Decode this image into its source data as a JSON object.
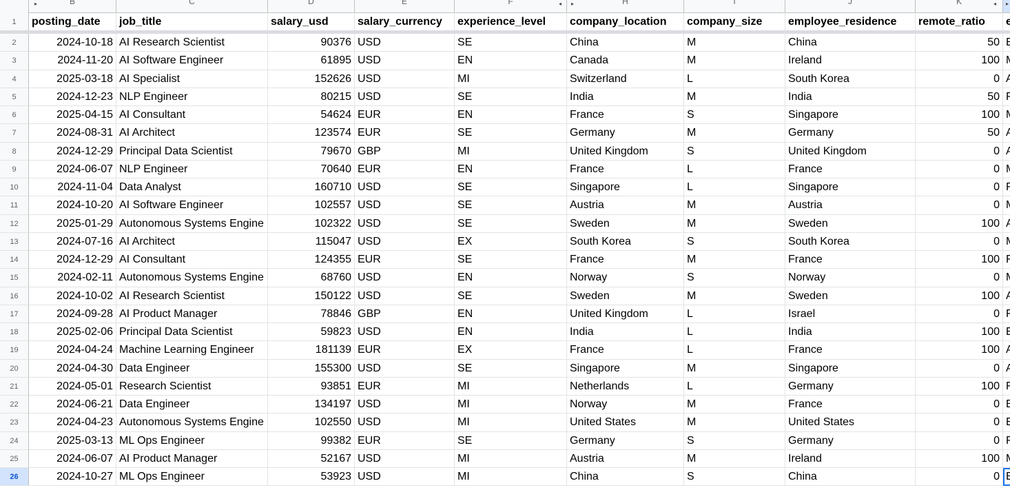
{
  "columns": [
    {
      "letter": "B",
      "header": "posting_date",
      "type": "num"
    },
    {
      "letter": "C",
      "header": "job_title",
      "type": "text"
    },
    {
      "letter": "D",
      "header": "salary_usd",
      "type": "num"
    },
    {
      "letter": "E",
      "header": "salary_currency",
      "type": "text"
    },
    {
      "letter": "F",
      "header": "experience_level",
      "type": "text"
    },
    {
      "letter": "H",
      "header": "company_location",
      "type": "text"
    },
    {
      "letter": "I",
      "header": "company_size",
      "type": "text"
    },
    {
      "letter": "J",
      "header": "employee_residence",
      "type": "text"
    },
    {
      "letter": "K",
      "header": "remote_ratio",
      "type": "num"
    },
    {
      "letter": "",
      "header": "e",
      "type": "text"
    }
  ],
  "header_row_number": "1",
  "selected_row": "26",
  "rows": [
    {
      "n": "2",
      "cells": [
        "2024-10-18",
        "AI Research Scientist",
        "90376",
        "USD",
        "SE",
        "China",
        "M",
        "China",
        "50",
        "E"
      ]
    },
    {
      "n": "3",
      "cells": [
        "2024-11-20",
        "AI Software Engineer",
        "61895",
        "USD",
        "EN",
        "Canada",
        "M",
        "Ireland",
        "100",
        "M"
      ]
    },
    {
      "n": "4",
      "cells": [
        "2025-03-18",
        "AI Specialist",
        "152626",
        "USD",
        "MI",
        "Switzerland",
        "L",
        "South Korea",
        "0",
        "A"
      ]
    },
    {
      "n": "5",
      "cells": [
        "2024-12-23",
        "NLP Engineer",
        "80215",
        "USD",
        "SE",
        "India",
        "M",
        "India",
        "50",
        "F"
      ]
    },
    {
      "n": "6",
      "cells": [
        "2025-04-15",
        "AI Consultant",
        "54624",
        "EUR",
        "EN",
        "France",
        "S",
        "Singapore",
        "100",
        "M"
      ]
    },
    {
      "n": "7",
      "cells": [
        "2024-08-31",
        "AI Architect",
        "123574",
        "EUR",
        "SE",
        "Germany",
        "M",
        "Germany",
        "50",
        "A"
      ]
    },
    {
      "n": "8",
      "cells": [
        "2024-12-29",
        "Principal Data Scientist",
        "79670",
        "GBP",
        "MI",
        "United Kingdom",
        "S",
        "United Kingdom",
        "0",
        "A"
      ]
    },
    {
      "n": "9",
      "cells": [
        "2024-06-07",
        "NLP Engineer",
        "70640",
        "EUR",
        "EN",
        "France",
        "L",
        "France",
        "0",
        "M"
      ]
    },
    {
      "n": "10",
      "cells": [
        "2024-11-04",
        "Data Analyst",
        "160710",
        "USD",
        "SE",
        "Singapore",
        "L",
        "Singapore",
        "0",
        "F"
      ]
    },
    {
      "n": "11",
      "cells": [
        "2024-10-20",
        "AI Software Engineer",
        "102557",
        "USD",
        "SE",
        "Austria",
        "M",
        "Austria",
        "0",
        "M"
      ]
    },
    {
      "n": "12",
      "cells": [
        "2025-01-29",
        "Autonomous Systems Engine",
        "102322",
        "USD",
        "SE",
        "Sweden",
        "M",
        "Sweden",
        "100",
        "A"
      ]
    },
    {
      "n": "13",
      "cells": [
        "2024-07-16",
        "AI Architect",
        "115047",
        "USD",
        "EX",
        "South Korea",
        "S",
        "South Korea",
        "0",
        "M"
      ]
    },
    {
      "n": "14",
      "cells": [
        "2024-12-29",
        "AI Consultant",
        "124355",
        "EUR",
        "SE",
        "France",
        "M",
        "France",
        "100",
        "F"
      ]
    },
    {
      "n": "15",
      "cells": [
        "2024-02-11",
        "Autonomous Systems Engine",
        "68760",
        "USD",
        "EN",
        "Norway",
        "S",
        "Norway",
        "0",
        "M"
      ]
    },
    {
      "n": "16",
      "cells": [
        "2024-10-02",
        "AI Research Scientist",
        "150122",
        "USD",
        "SE",
        "Sweden",
        "M",
        "Sweden",
        "100",
        "A"
      ]
    },
    {
      "n": "17",
      "cells": [
        "2024-09-28",
        "AI Product Manager",
        "78846",
        "GBP",
        "EN",
        "United Kingdom",
        "L",
        "Israel",
        "0",
        "F"
      ]
    },
    {
      "n": "18",
      "cells": [
        "2025-02-06",
        "Principal Data Scientist",
        "59823",
        "USD",
        "EN",
        "India",
        "L",
        "India",
        "100",
        "E"
      ]
    },
    {
      "n": "19",
      "cells": [
        "2024-04-24",
        "Machine Learning Engineer",
        "181139",
        "EUR",
        "EX",
        "France",
        "L",
        "France",
        "100",
        "A"
      ]
    },
    {
      "n": "20",
      "cells": [
        "2024-04-30",
        "Data Engineer",
        "155300",
        "USD",
        "SE",
        "Singapore",
        "M",
        "Singapore",
        "0",
        "A"
      ]
    },
    {
      "n": "21",
      "cells": [
        "2024-05-01",
        "Research Scientist",
        "93851",
        "EUR",
        "MI",
        "Netherlands",
        "L",
        "Germany",
        "100",
        "F"
      ]
    },
    {
      "n": "22",
      "cells": [
        "2024-06-21",
        "Data Engineer",
        "134197",
        "USD",
        "MI",
        "Norway",
        "M",
        "France",
        "0",
        "E"
      ]
    },
    {
      "n": "23",
      "cells": [
        "2024-04-23",
        "Autonomous Systems Engine",
        "102550",
        "USD",
        "MI",
        "United States",
        "M",
        "United States",
        "0",
        "E"
      ]
    },
    {
      "n": "24",
      "cells": [
        "2025-03-13",
        "ML Ops Engineer",
        "99382",
        "EUR",
        "SE",
        "Germany",
        "S",
        "Germany",
        "0",
        "F"
      ]
    },
    {
      "n": "25",
      "cells": [
        "2024-06-07",
        "AI Product Manager",
        "52167",
        "USD",
        "MI",
        "Austria",
        "M",
        "Ireland",
        "100",
        "M"
      ]
    },
    {
      "n": "26",
      "cells": [
        "2024-10-27",
        "ML Ops Engineer",
        "53923",
        "USD",
        "MI",
        "China",
        "S",
        "China",
        "0",
        "E"
      ]
    }
  ]
}
